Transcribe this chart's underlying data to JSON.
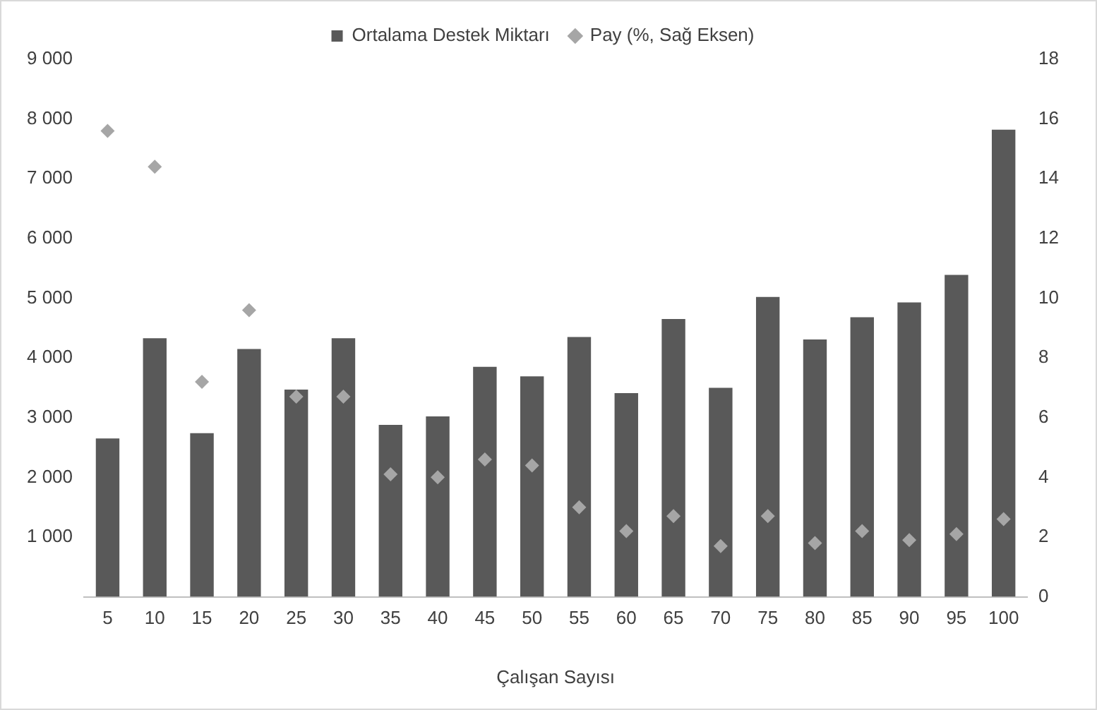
{
  "chart_data": {
    "type": "bar",
    "xlabel": "Çalışan Sayısı",
    "categories": [
      "5",
      "10",
      "15",
      "20",
      "25",
      "30",
      "35",
      "40",
      "45",
      "50",
      "55",
      "60",
      "65",
      "70",
      "75",
      "80",
      "85",
      "90",
      "95",
      "100"
    ],
    "series": [
      {
        "name": "Ortalama Destek Miktarı",
        "color": "#595959",
        "values": [
          2650,
          4330,
          2740,
          4150,
          3470,
          4330,
          2880,
          3020,
          3850,
          3690,
          4350,
          3410,
          4650,
          3500,
          5020,
          4310,
          4680,
          4930,
          5390,
          7820
        ]
      },
      {
        "name": "Pay (%, Sağ Eksen)",
        "type": "scatter",
        "axis": "y2",
        "marker": "diamond",
        "color": "#a6a6a6",
        "values": [
          15.6,
          14.4,
          7.2,
          9.6,
          6.7,
          6.7,
          4.1,
          4.0,
          4.6,
          4.4,
          3.0,
          2.2,
          2.7,
          1.7,
          2.7,
          1.8,
          2.2,
          1.9,
          2.1,
          2.6
        ]
      }
    ],
    "ylim": [
      0,
      9000
    ],
    "yticks": [
      {
        "value": 0,
        "label": null
      },
      {
        "value": 1000,
        "label": "1 000"
      },
      {
        "value": 2000,
        "label": "2 000"
      },
      {
        "value": 3000,
        "label": "3 000"
      },
      {
        "value": 4000,
        "label": "4 000"
      },
      {
        "value": 5000,
        "label": "5 000"
      },
      {
        "value": 6000,
        "label": "6 000"
      },
      {
        "value": 7000,
        "label": "7 000"
      },
      {
        "value": 8000,
        "label": "8 000"
      },
      {
        "value": 9000,
        "label": "9 000"
      }
    ],
    "y2lim": [
      0,
      18
    ],
    "y2ticks": [
      0,
      2,
      4,
      6,
      8,
      10,
      12,
      14,
      16,
      18
    ],
    "grid": false,
    "legend": "top"
  }
}
